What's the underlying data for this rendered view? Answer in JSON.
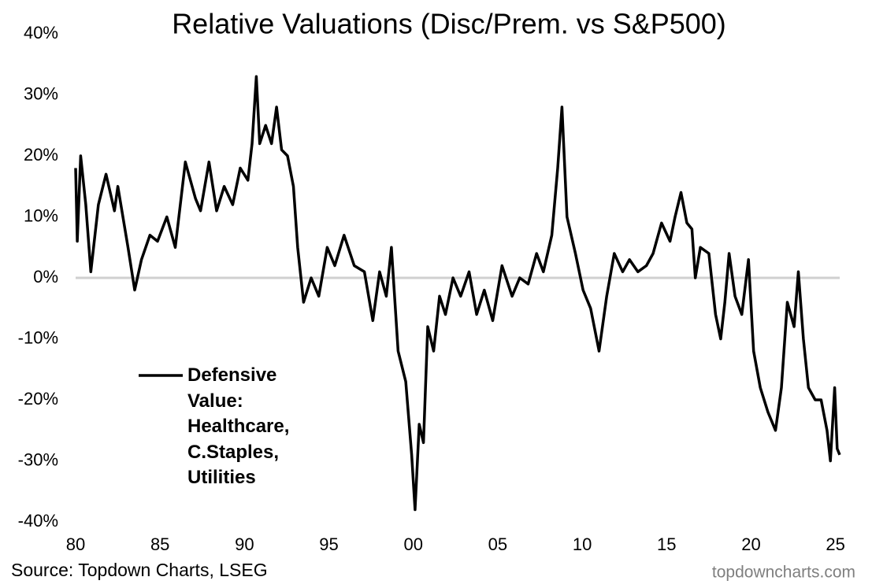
{
  "chart_data": {
    "type": "line",
    "title": "Relative Valuations (Disc/Prem. vs S&P500)",
    "source": "Source: Topdown Charts, LSEG",
    "watermark": "topdowncharts.com",
    "x": [
      1980.0,
      1980.1,
      1980.3,
      1980.6,
      1980.9,
      1981.35,
      1981.8,
      1982.3,
      1982.5,
      1983.1,
      1983.5,
      1983.9,
      1984.4,
      1984.85,
      1985.4,
      1985.9,
      1986.5,
      1987.1,
      1987.4,
      1987.9,
      1988.35,
      1988.8,
      1989.3,
      1989.75,
      1990.2,
      1990.45,
      1990.7,
      1990.9,
      1991.25,
      1991.6,
      1991.9,
      1992.2,
      1992.55,
      1992.9,
      1993.15,
      1993.5,
      1993.95,
      1994.4,
      1994.9,
      1995.35,
      1995.9,
      1996.5,
      1997.1,
      1997.6,
      1998.0,
      1998.4,
      1998.7,
      1999.1,
      1999.55,
      1999.9,
      2000.1,
      2000.35,
      2000.6,
      2000.85,
      2001.2,
      2001.55,
      2001.9,
      2002.35,
      2002.8,
      2003.3,
      2003.75,
      2004.2,
      2004.7,
      2005.25,
      2005.85,
      2006.3,
      2006.8,
      2007.3,
      2007.7,
      2008.2,
      2008.55,
      2008.8,
      2009.1,
      2009.6,
      2010.05,
      2010.5,
      2011.0,
      2011.45,
      2011.9,
      2012.4,
      2012.8,
      2013.3,
      2013.8,
      2014.2,
      2014.7,
      2015.2,
      2015.5,
      2015.85,
      2016.2,
      2016.5,
      2016.7,
      2017.0,
      2017.5,
      2017.9,
      2018.2,
      2018.45,
      2018.7,
      2019.05,
      2019.45,
      2019.85,
      2020.15,
      2020.55,
      2021.0,
      2021.45,
      2021.8,
      2022.15,
      2022.55,
      2022.8,
      2023.1,
      2023.4,
      2023.8,
      2024.15,
      2024.5,
      2024.7,
      2024.95,
      2025.1,
      2025.25
    ],
    "series": [
      {
        "name": "Defensive Value: Healthcare, C.Staples, Utilities",
        "color": "#000000",
        "values": [
          18,
          6,
          20,
          12,
          1,
          12,
          17,
          11,
          15,
          5,
          -2,
          3,
          7,
          6,
          10,
          5,
          19,
          13,
          11,
          19,
          11,
          15,
          12,
          18,
          16,
          22,
          33,
          22,
          25,
          22,
          28,
          21,
          20,
          15,
          5,
          -4,
          0,
          -3,
          5,
          2,
          7,
          2,
          1,
          -7,
          1,
          -3,
          5,
          -12,
          -17,
          -29,
          -38,
          -24,
          -27,
          -8,
          -12,
          -3,
          -6,
          0,
          -3,
          1,
          -6,
          -2,
          -7,
          2,
          -3,
          0,
          -1,
          4,
          1,
          7,
          18,
          28,
          10,
          4,
          -2,
          -5,
          -12,
          -3,
          4,
          1,
          3,
          1,
          2,
          4,
          9,
          6,
          10,
          14,
          9,
          8,
          0,
          5,
          4,
          -6,
          -10,
          -4,
          4,
          -3,
          -6,
          3,
          -12,
          -18,
          -22,
          -25,
          -18,
          -4,
          -8,
          1,
          -10,
          -18,
          -20,
          -20,
          -25,
          -30,
          -18,
          -28,
          -29
        ]
      }
    ],
    "xlim": [
      1980,
      2025.25
    ],
    "xticks": [
      {
        "value": 1980,
        "label": "80"
      },
      {
        "value": 1985,
        "label": "85"
      },
      {
        "value": 1990,
        "label": "90"
      },
      {
        "value": 1995,
        "label": "95"
      },
      {
        "value": 2000,
        "label": "00"
      },
      {
        "value": 2005,
        "label": "05"
      },
      {
        "value": 2010,
        "label": "10"
      },
      {
        "value": 2015,
        "label": "15"
      },
      {
        "value": 2020,
        "label": "20"
      },
      {
        "value": 2025,
        "label": "25"
      }
    ],
    "ylim": [
      -40,
      40
    ],
    "yticks": [
      {
        "value": -40,
        "label": "-40%"
      },
      {
        "value": -30,
        "label": "-30%"
      },
      {
        "value": -20,
        "label": "-20%"
      },
      {
        "value": -10,
        "label": "-10%"
      },
      {
        "value": 0,
        "label": "0%"
      },
      {
        "value": 10,
        "label": "10%"
      },
      {
        "value": 20,
        "label": "20%"
      },
      {
        "value": 30,
        "label": "30%"
      },
      {
        "value": 40,
        "label": "40%"
      }
    ],
    "zero_line": true,
    "zero_line_color": "#d0d0d0",
    "grid": false
  }
}
